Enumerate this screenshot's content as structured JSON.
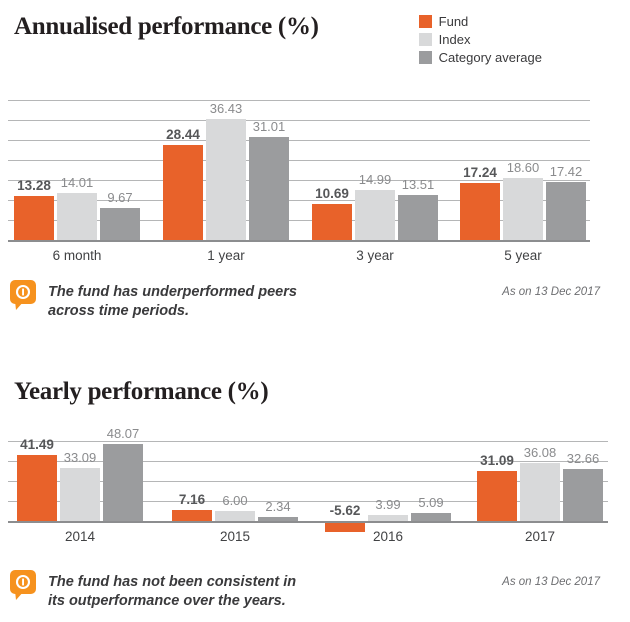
{
  "legend": {
    "items": [
      {
        "label": "Fund",
        "color": "#E8622A"
      },
      {
        "label": "Index",
        "color": "#D8D9DA"
      },
      {
        "label": "Category average",
        "color": "#9B9C9E"
      }
    ]
  },
  "icons": {
    "note_icon": "info-speech-bubble-icon"
  },
  "colors": {
    "note_icon_orange": "#F6921E",
    "gridline": "#B5B6B7",
    "axis_line": "#8C8D8F"
  },
  "chart_data": [
    {
      "type": "bar",
      "title": "Annualised performance (%)",
      "categories": [
        "6 month",
        "1 year",
        "3 year",
        "5 year"
      ],
      "series": [
        {
          "name": "Fund",
          "values": [
            13.28,
            28.44,
            10.69,
            17.24
          ]
        },
        {
          "name": "Index",
          "values": [
            14.01,
            36.43,
            14.99,
            18.6
          ]
        },
        {
          "name": "Category average",
          "values": [
            9.67,
            31.01,
            13.51,
            17.42
          ]
        }
      ],
      "xlabel": "",
      "ylabel": "",
      "ylim": [
        0,
        42
      ],
      "gridline_step": 6,
      "grid": "horizontal",
      "legend_position": "top-right",
      "value_labels": "above-bars",
      "annotation": "The fund has underperformed peers across time periods.",
      "as_on": "As on 13 Dec 2017"
    },
    {
      "type": "bar",
      "title": "Yearly performance (%)",
      "categories": [
        "2014",
        "2015",
        "2016",
        "2017"
      ],
      "series": [
        {
          "name": "Fund",
          "values": [
            41.49,
            7.16,
            -5.62,
            31.09
          ]
        },
        {
          "name": "Index",
          "values": [
            33.09,
            6.0,
            3.99,
            36.08
          ]
        },
        {
          "name": "Category average",
          "values": [
            48.07,
            2.34,
            5.09,
            32.66
          ]
        }
      ],
      "xlabel": "",
      "ylabel": "",
      "ylim": [
        0,
        50
      ],
      "gridline_step": 12.5,
      "grid": "horizontal",
      "legend_position": "none",
      "value_labels": "above-bars",
      "annotation": "The fund has not been consistent in its outperformance over the years.",
      "as_on": "As on 13 Dec 2017"
    }
  ]
}
